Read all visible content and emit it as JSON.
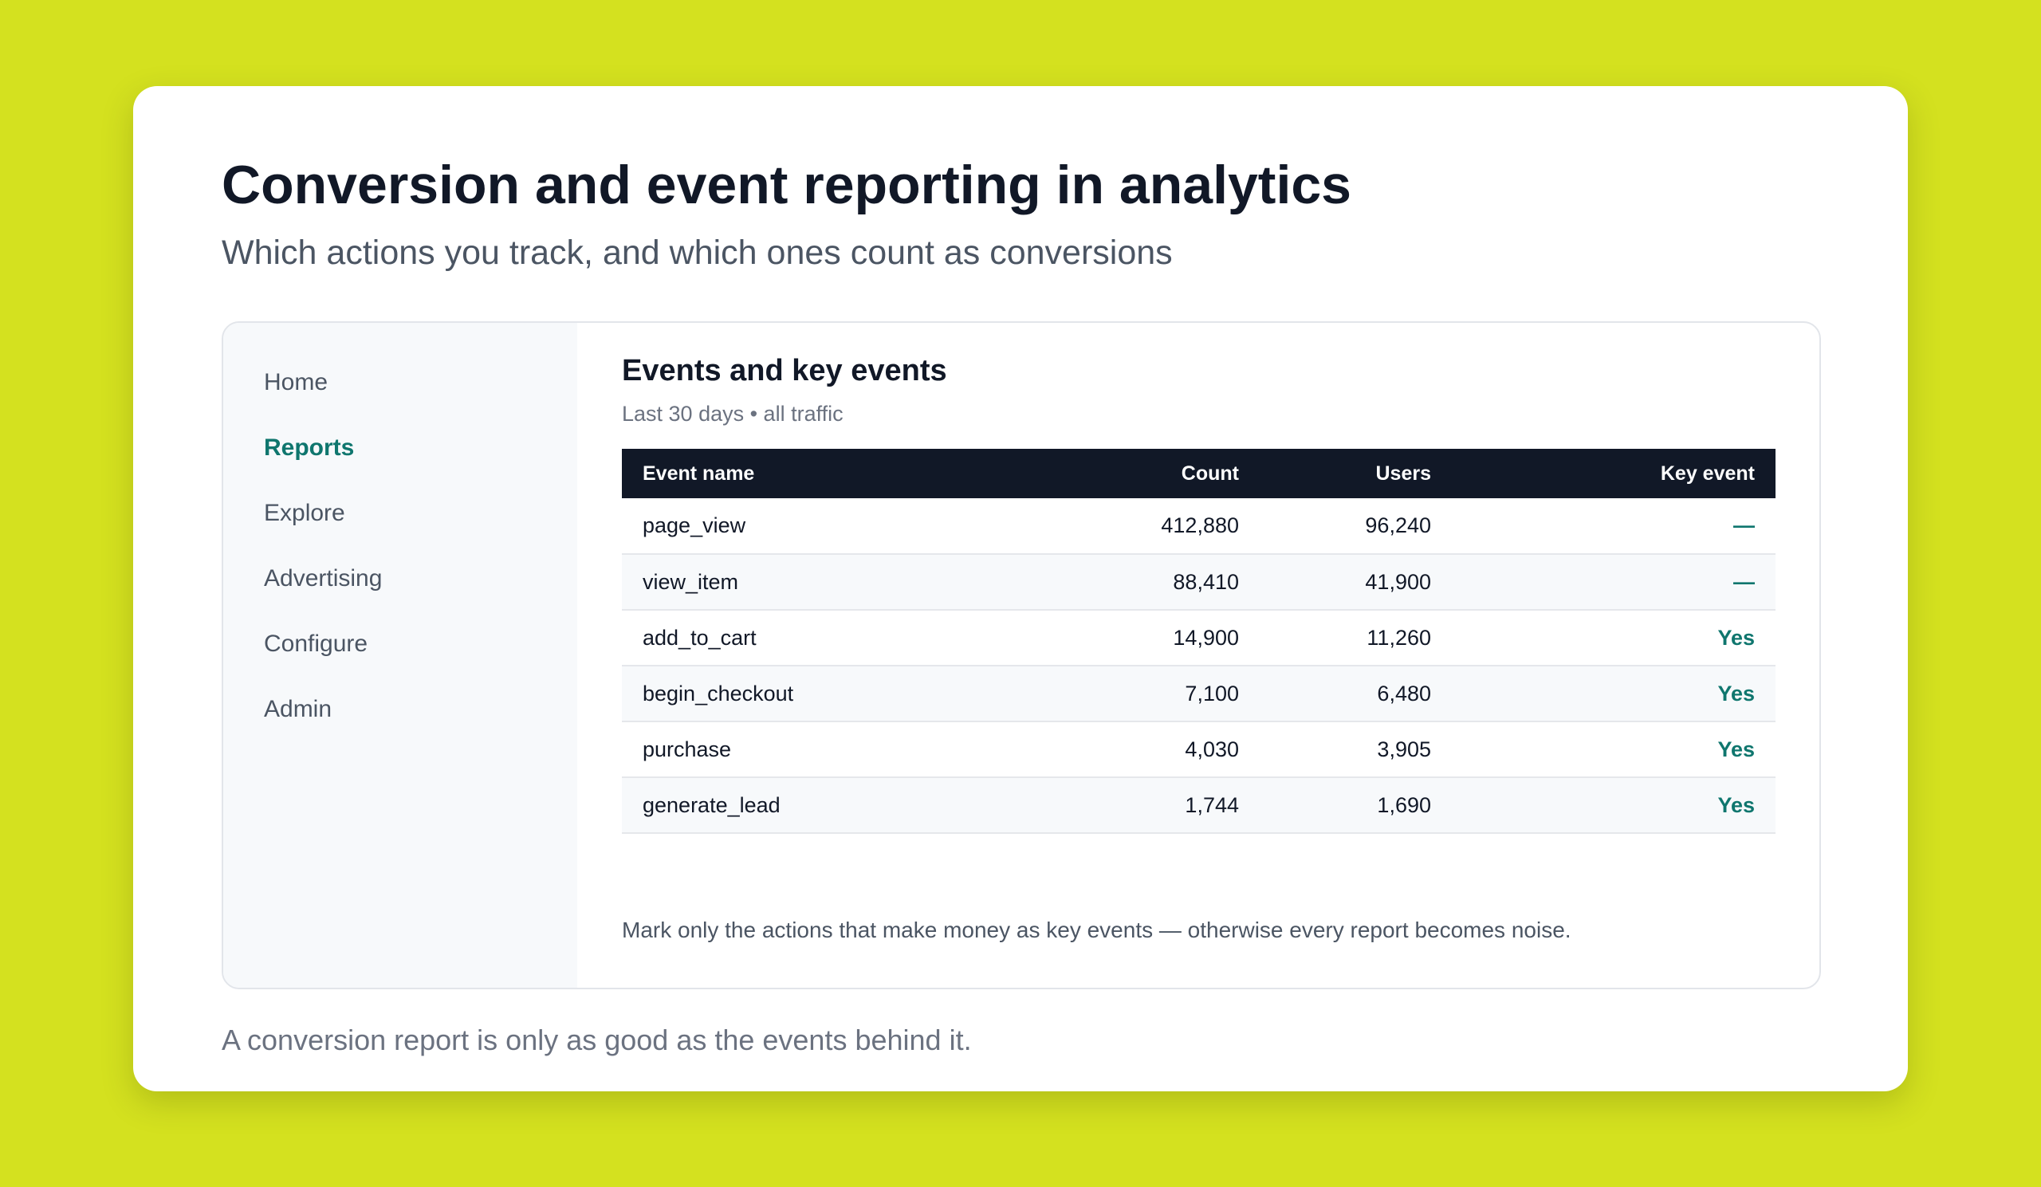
{
  "page": {
    "title": "Conversion and event reporting in analytics",
    "subtitle": "Which actions you track, and which ones count as conversions",
    "footer": "A conversion report is only as good as the events behind it."
  },
  "sidebar": {
    "items": [
      {
        "label": "Home",
        "active": false
      },
      {
        "label": "Reports",
        "active": true
      },
      {
        "label": "Explore",
        "active": false
      },
      {
        "label": "Advertising",
        "active": false
      },
      {
        "label": "Configure",
        "active": false
      },
      {
        "label": "Admin",
        "active": false
      }
    ]
  },
  "panel": {
    "title": "Events and key events",
    "subtitle": "Last 30 days • all traffic",
    "note": "Mark only the actions that make money as key events — otherwise every report becomes noise."
  },
  "table": {
    "headers": {
      "event_name": "Event name",
      "count": "Count",
      "users": "Users",
      "key_event": "Key event"
    },
    "rows": [
      {
        "event_name": "page_view",
        "count": "412,880",
        "users": "96,240",
        "key_event": "—"
      },
      {
        "event_name": "view_item",
        "count": "88,410",
        "users": "41,900",
        "key_event": "—"
      },
      {
        "event_name": "add_to_cart",
        "count": "14,900",
        "users": "11,260",
        "key_event": "Yes"
      },
      {
        "event_name": "begin_checkout",
        "count": "7,100",
        "users": "6,480",
        "key_event": "Yes"
      },
      {
        "event_name": "purchase",
        "count": "4,030",
        "users": "3,905",
        "key_event": "Yes"
      },
      {
        "event_name": "generate_lead",
        "count": "1,744",
        "users": "1,690",
        "key_event": "Yes"
      }
    ]
  },
  "colors": {
    "background": "#d4e11f",
    "accent": "#0f766e",
    "table_header": "#111827"
  }
}
